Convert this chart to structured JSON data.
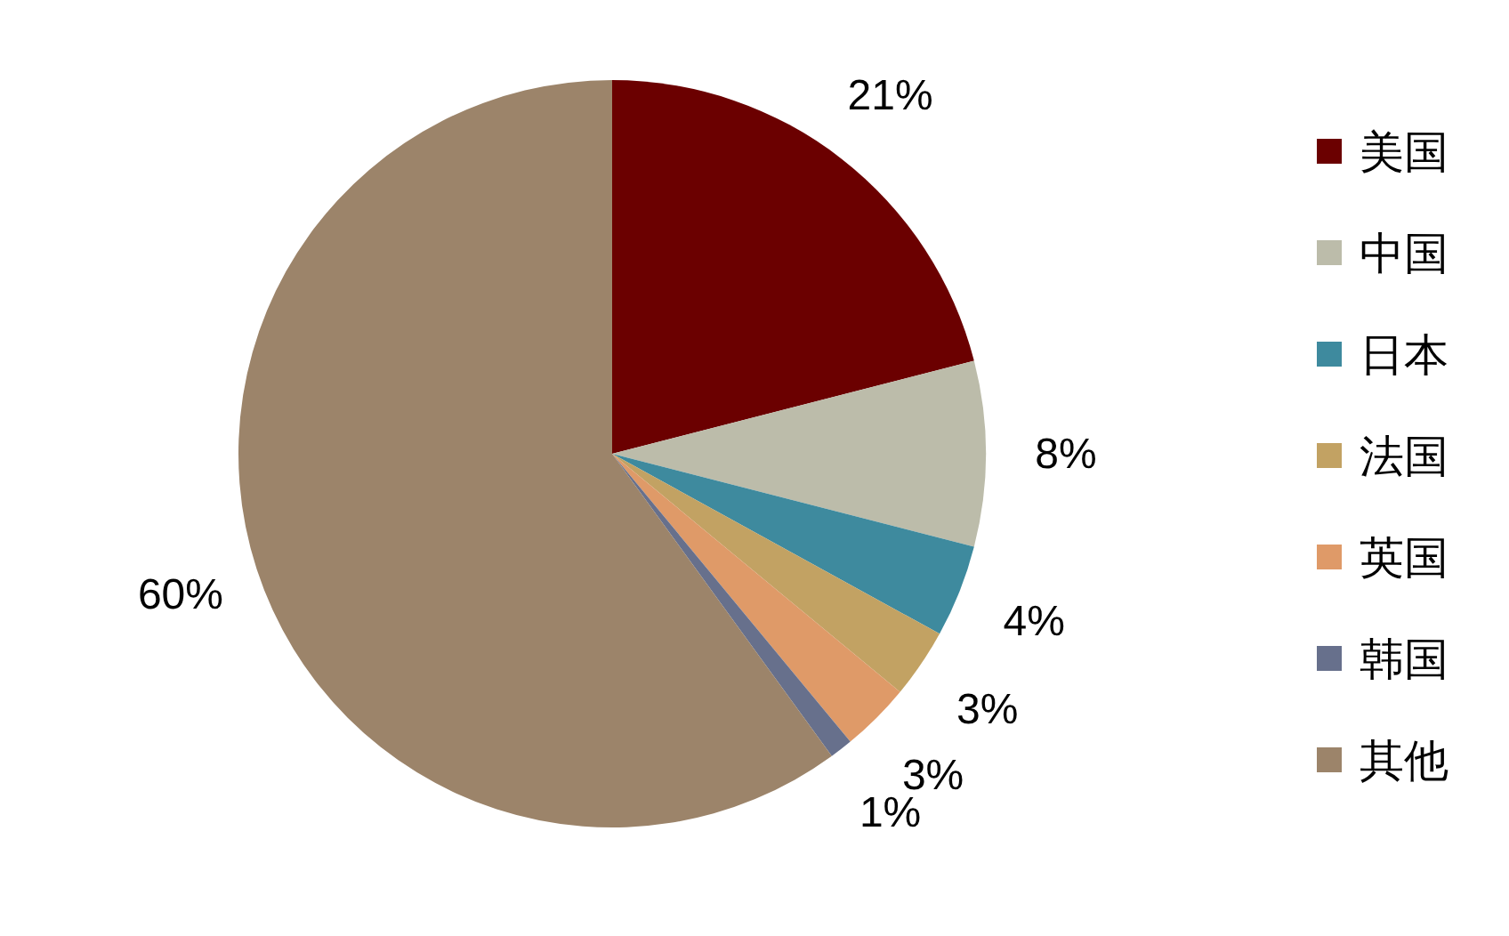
{
  "chart_data": {
    "type": "pie",
    "categories": [
      "美国",
      "中国",
      "日本",
      "法国",
      "英国",
      "韩国",
      "其他"
    ],
    "values": [
      21,
      8,
      4,
      3,
      3,
      1,
      60
    ],
    "value_labels": [
      "21%",
      "8%",
      "4%",
      "3%",
      "3%",
      "1%",
      "60%"
    ],
    "colors": [
      "#6b0000",
      "#bcbcaa",
      "#3e8a9e",
      "#c2a263",
      "#df9a68",
      "#67708c",
      "#9c846a"
    ],
    "legend": "right"
  }
}
